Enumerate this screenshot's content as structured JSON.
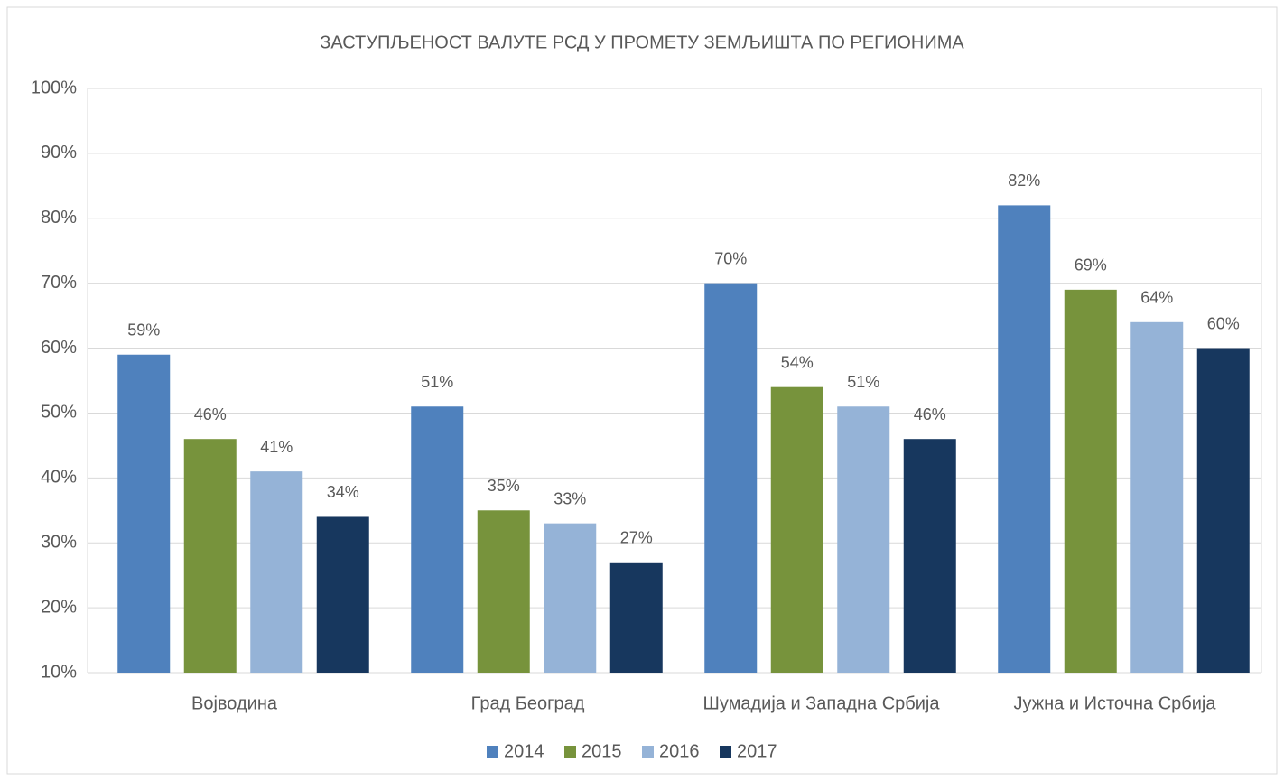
{
  "chart_data": {
    "type": "bar",
    "title": "ЗАСТУПЉЕНОСТ ВАЛУТЕ РСД У ПРОМЕТУ ЗЕМЉИШТА ПО РЕГИОНИМА",
    "categories": [
      "Војводина",
      "Град Београд",
      "Шумадија и Западна Србија",
      "Јужна и Источна Србија"
    ],
    "series": [
      {
        "name": "2014",
        "color": "#4f81bd",
        "values": [
          59,
          51,
          70,
          82
        ],
        "value_labels": [
          "59%",
          "51%",
          "70%",
          "82%"
        ]
      },
      {
        "name": "2015",
        "color": "#77933c",
        "values": [
          46,
          35,
          54,
          69
        ],
        "value_labels": [
          "46%",
          "35%",
          "54%",
          "69%"
        ]
      },
      {
        "name": "2016",
        "color": "#95b3d7",
        "values": [
          41,
          33,
          51,
          64
        ],
        "value_labels": [
          "41%",
          "33%",
          "51%",
          "64%"
        ]
      },
      {
        "name": "2017",
        "color": "#17375e",
        "values": [
          34,
          27,
          46,
          60
        ],
        "value_labels": [
          "34%",
          "27%",
          "46%",
          "60%"
        ]
      }
    ],
    "ylim": [
      10,
      100
    ],
    "yticks": [
      {
        "value": 10,
        "label": "10%"
      },
      {
        "value": 20,
        "label": "20%"
      },
      {
        "value": 30,
        "label": "30%"
      },
      {
        "value": 40,
        "label": "40%"
      },
      {
        "value": 50,
        "label": "50%"
      },
      {
        "value": 60,
        "label": "60%"
      },
      {
        "value": 70,
        "label": "70%"
      },
      {
        "value": 80,
        "label": "80%"
      },
      {
        "value": 90,
        "label": "90%"
      },
      {
        "value": 100,
        "label": "100%"
      }
    ],
    "grid": true,
    "legend": "bottom"
  }
}
